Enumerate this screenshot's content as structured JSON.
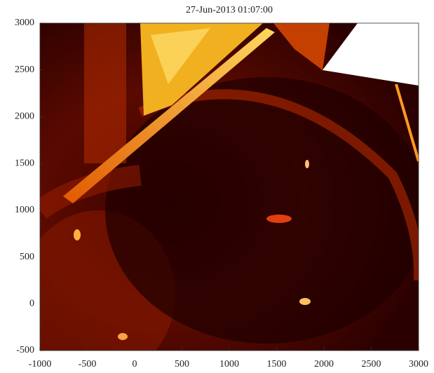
{
  "chart_data": {
    "type": "image",
    "title": "27-Jun-2013 01:07:00",
    "xlim": [
      -1000,
      3000
    ],
    "xticks": [
      -1000,
      -500,
      0,
      500,
      1000,
      1500,
      2000,
      2500,
      3000
    ],
    "ylim": [
      -500,
      3000
    ],
    "yticks": [
      -500,
      0,
      500,
      1000,
      1500,
      2000,
      2500,
      3000
    ]
  }
}
